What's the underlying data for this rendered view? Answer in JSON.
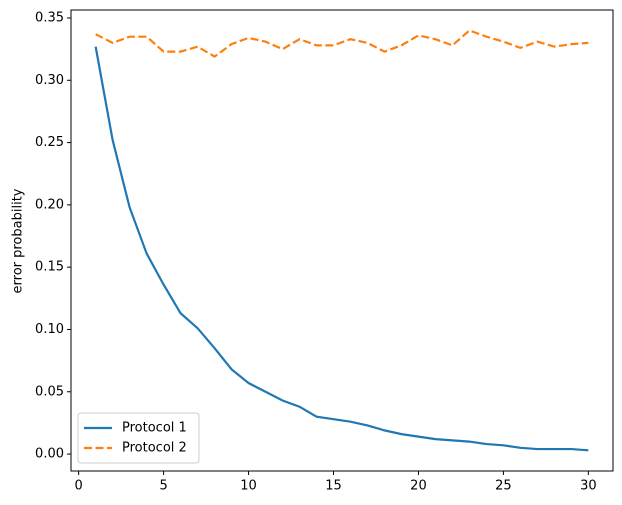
{
  "chart_data": {
    "type": "line",
    "ylabel": "error probability",
    "x": [
      1,
      2,
      3,
      4,
      5,
      6,
      7,
      8,
      9,
      10,
      11,
      12,
      13,
      14,
      15,
      16,
      17,
      18,
      19,
      20,
      21,
      22,
      23,
      24,
      25,
      26,
      27,
      28,
      29,
      30
    ],
    "series": [
      {
        "name": "Protocol 1",
        "color": "#1f77b4",
        "dash": "solid",
        "values": [
          0.327,
          0.252,
          0.198,
          0.161,
          0.136,
          0.113,
          0.101,
          0.085,
          0.068,
          0.057,
          0.05,
          0.043,
          0.038,
          0.03,
          0.028,
          0.026,
          0.023,
          0.019,
          0.016,
          0.014,
          0.012,
          0.011,
          0.01,
          0.008,
          0.007,
          0.005,
          0.004,
          0.004,
          0.004,
          0.003
        ]
      },
      {
        "name": "Protocol 2",
        "color": "#ff7f0e",
        "dash": "dashed",
        "values": [
          0.337,
          0.33,
          0.335,
          0.335,
          0.323,
          0.323,
          0.327,
          0.319,
          0.329,
          0.334,
          0.331,
          0.325,
          0.333,
          0.328,
          0.328,
          0.333,
          0.33,
          0.323,
          0.328,
          0.336,
          0.333,
          0.328,
          0.34,
          0.335,
          0.331,
          0.326,
          0.331,
          0.327,
          0.329,
          0.33
        ]
      }
    ],
    "xlim": [
      -0.45,
      31.45
    ],
    "xticks": [
      0,
      5,
      10,
      15,
      20,
      25,
      30
    ],
    "ylim": [
      -0.0136,
      0.3564
    ],
    "yticks": [
      {
        "value": 0,
        "label": "0.00"
      },
      {
        "value": 0.05,
        "label": "0.05"
      },
      {
        "value": 0.1,
        "label": "0.10"
      },
      {
        "value": 0.15,
        "label": "0.15"
      },
      {
        "value": 0.2,
        "label": "0.20"
      },
      {
        "value": 0.25,
        "label": "0.25"
      },
      {
        "value": 0.3,
        "label": "0.30"
      },
      {
        "value": 0.35,
        "label": "0.35"
      }
    ],
    "legend": "lower left"
  }
}
